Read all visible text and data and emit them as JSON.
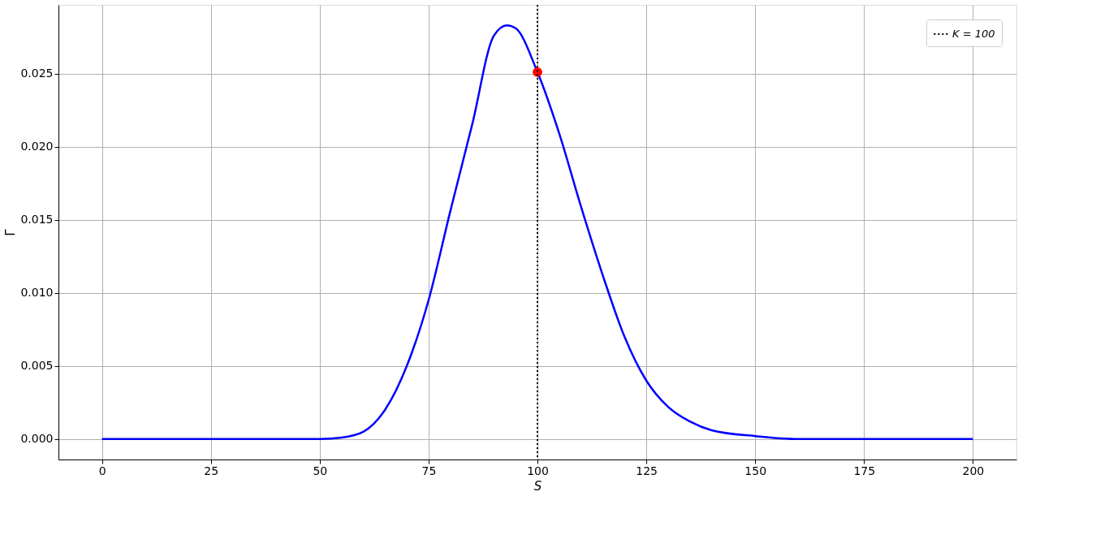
{
  "chart_data": {
    "type": "line",
    "xlabel": "S",
    "ylabel": "Γ",
    "xlim": [
      -10,
      210
    ],
    "ylim": [
      -0.0014,
      0.0297
    ],
    "xticks": [
      0,
      25,
      50,
      75,
      100,
      125,
      150,
      175,
      200
    ],
    "yticks": [
      {
        "value": 0,
        "label": "0.000"
      },
      {
        "value": 0.005,
        "label": "0.005"
      },
      {
        "value": 0.01,
        "label": "0.010"
      },
      {
        "value": 0.015,
        "label": "0.015"
      },
      {
        "value": 0.02,
        "label": "0.020"
      },
      {
        "value": 0.025,
        "label": "0.025"
      }
    ],
    "grid": true,
    "legend": "top right",
    "series": [
      {
        "color": "#0000ff",
        "marker": "none",
        "line_style": "solid",
        "x": [
          0,
          25,
          50,
          55,
          60,
          65,
          70,
          75,
          80,
          85,
          90,
          93,
          95,
          100,
          105,
          110,
          115,
          120,
          125,
          130,
          135,
          140,
          150,
          160,
          175,
          200
        ],
        "values": [
          0,
          0,
          0,
          0.0001,
          0.0005,
          0.002,
          0.005,
          0.0095,
          0.0156,
          0.0215,
          0.0276,
          0.0283,
          0.0281,
          0.0251,
          0.0209,
          0.0159,
          0.0112,
          0.007,
          0.004,
          0.0022,
          0.0012,
          0.0006,
          0.0002,
          0,
          0,
          0
        ]
      },
      {
        "type": "scatter",
        "color": "#ff0000",
        "marker": "circle",
        "x": [
          100
        ],
        "values": [
          0.0251
        ]
      }
    ],
    "ref_lines": [
      {
        "axis": "x",
        "value": 100,
        "label": "K = 100",
        "color": "#000000",
        "line_style": "dotted"
      }
    ]
  }
}
